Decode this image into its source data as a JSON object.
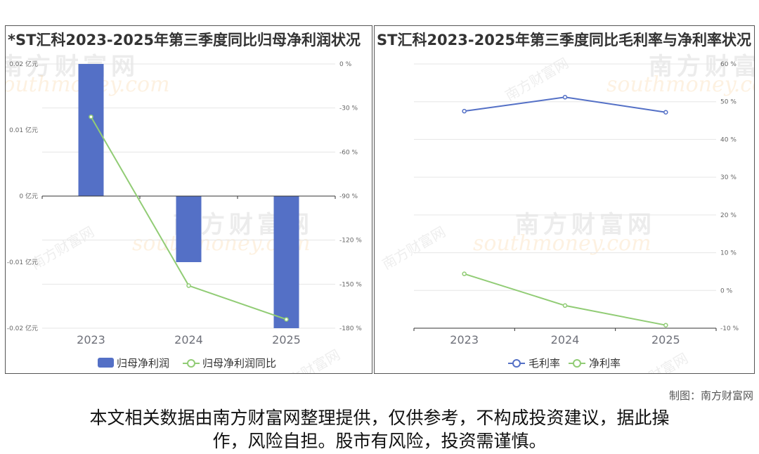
{
  "chart_data": [
    {
      "type": "bar",
      "title": "*ST汇科2023-2025年第三季度同比归母净利润状况",
      "categories": [
        "2023",
        "2024",
        "2025"
      ],
      "series": [
        {
          "name": "归母净利润",
          "kind": "bar",
          "axis": "left",
          "color": "#5470c6",
          "values": [
            0.02,
            -0.01,
            -0.02
          ]
        },
        {
          "name": "归母净利润同比",
          "kind": "line",
          "axis": "right",
          "color": "#91cc75",
          "values": [
            -36,
            -151,
            -174
          ]
        }
      ],
      "y_left": {
        "unit": "亿元",
        "range": [
          -0.02,
          0.02
        ],
        "ticks": [
          0.02,
          0.01,
          0,
          -0.01,
          -0.02
        ],
        "tick_labels": [
          "0.02 亿元",
          "0.01 亿元",
          "0 亿元",
          "-0.01 亿元",
          "-0.02 亿元"
        ]
      },
      "y_right": {
        "unit": "%",
        "range": [
          -180,
          0
        ],
        "ticks": [
          0,
          -30,
          -60,
          -90,
          -120,
          -150,
          -180
        ],
        "tick_labels": [
          "0 %",
          "-30 %",
          "-60 %",
          "-90 %",
          "-120 %",
          "-150 %",
          "-180 %"
        ]
      },
      "grid": true,
      "legend_position": "bottom"
    },
    {
      "type": "line",
      "title": "ST汇科2023-2025年第三季度同比毛利率与净利率状况",
      "categories": [
        "2023",
        "2024",
        "2025"
      ],
      "series": [
        {
          "name": "毛利率",
          "kind": "line",
          "color": "#5470c6",
          "values": [
            47.5,
            51.2,
            47.2
          ]
        },
        {
          "name": "净利率",
          "kind": "line",
          "color": "#91cc75",
          "values": [
            4.4,
            -4.0,
            -9.2
          ]
        }
      ],
      "y_right": {
        "unit": "%",
        "range": [
          -10,
          60
        ],
        "ticks": [
          60,
          50,
          40,
          30,
          20,
          10,
          0,
          -10
        ],
        "tick_labels": [
          "60 %",
          "50 %",
          "40 %",
          "30 %",
          "20 %",
          "10 %",
          "0 %",
          "-10 %"
        ]
      },
      "grid": true,
      "legend_position": "bottom"
    }
  ],
  "watermark": {
    "name_cn": "南方财富网",
    "name_en": "southmoney.com"
  },
  "credit": "制图：南方财富网",
  "disclaimer_line1": "本文相关数据由南方财富网整理提供，仅供参考，不构成投资建议，据此操",
  "disclaimer_line2": "作，风险自担。股市有风险，投资需谨慎。"
}
